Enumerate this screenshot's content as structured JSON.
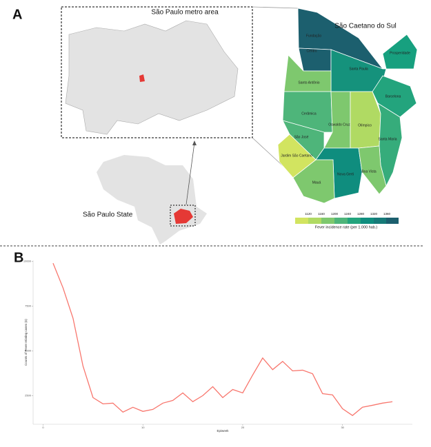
{
  "panel_a": {
    "label": "A",
    "inset_title": "São Paulo metro area",
    "state_label": "São Paulo State",
    "city_title": "São Caetano do Sul",
    "districts": [
      "Fundação",
      "Centro",
      "Prosperidade",
      "Santa Paula",
      "Santo Antônio",
      "Barcelona",
      "Cerâmica",
      "Oswaldo Cruz",
      "Olímpico",
      "São José",
      "Santa Maria",
      "Jardim São Caetano",
      "Nova Gerti",
      "Boa Vista",
      "Mauá"
    ],
    "legend": {
      "title": "Fever incidence rate (per 1.000 hab.)",
      "ticks": [
        1120,
        1160,
        1200,
        1240,
        1280,
        1320,
        1360
      ]
    }
  },
  "panel_b": {
    "label": "B"
  },
  "chart_data": {
    "type": "line",
    "x_label": "Epiweek",
    "y_label": "Counts of Fever relating cases (n)",
    "x": [
      1,
      2,
      3,
      4,
      5,
      6,
      7,
      8,
      9,
      10,
      11,
      12,
      13,
      14,
      15,
      16,
      17,
      18,
      19,
      20,
      21,
      22,
      23,
      24,
      25,
      26,
      27,
      28,
      29,
      30,
      31,
      32,
      33,
      34,
      35
    ],
    "series": [
      {
        "name": "Fever",
        "color": "#f8766d",
        "values": [
          9890,
          8510,
          6820,
          4150,
          2390,
          2040,
          2080,
          1580,
          1850,
          1620,
          1730,
          2080,
          2230,
          2650,
          2160,
          2500,
          3000,
          2390,
          2840,
          2650,
          3650,
          4600,
          3950,
          4410,
          3880,
          3920,
          3720,
          2610,
          2540,
          1770,
          1390,
          1850,
          1960,
          2080,
          2160
        ]
      }
    ],
    "xlim": [
      -1,
      37
    ],
    "xticks": [
      0,
      10,
      20,
      30
    ],
    "ylim": [
      900,
      10050
    ],
    "yticks": [
      2500,
      5000,
      7500,
      10000
    ]
  }
}
